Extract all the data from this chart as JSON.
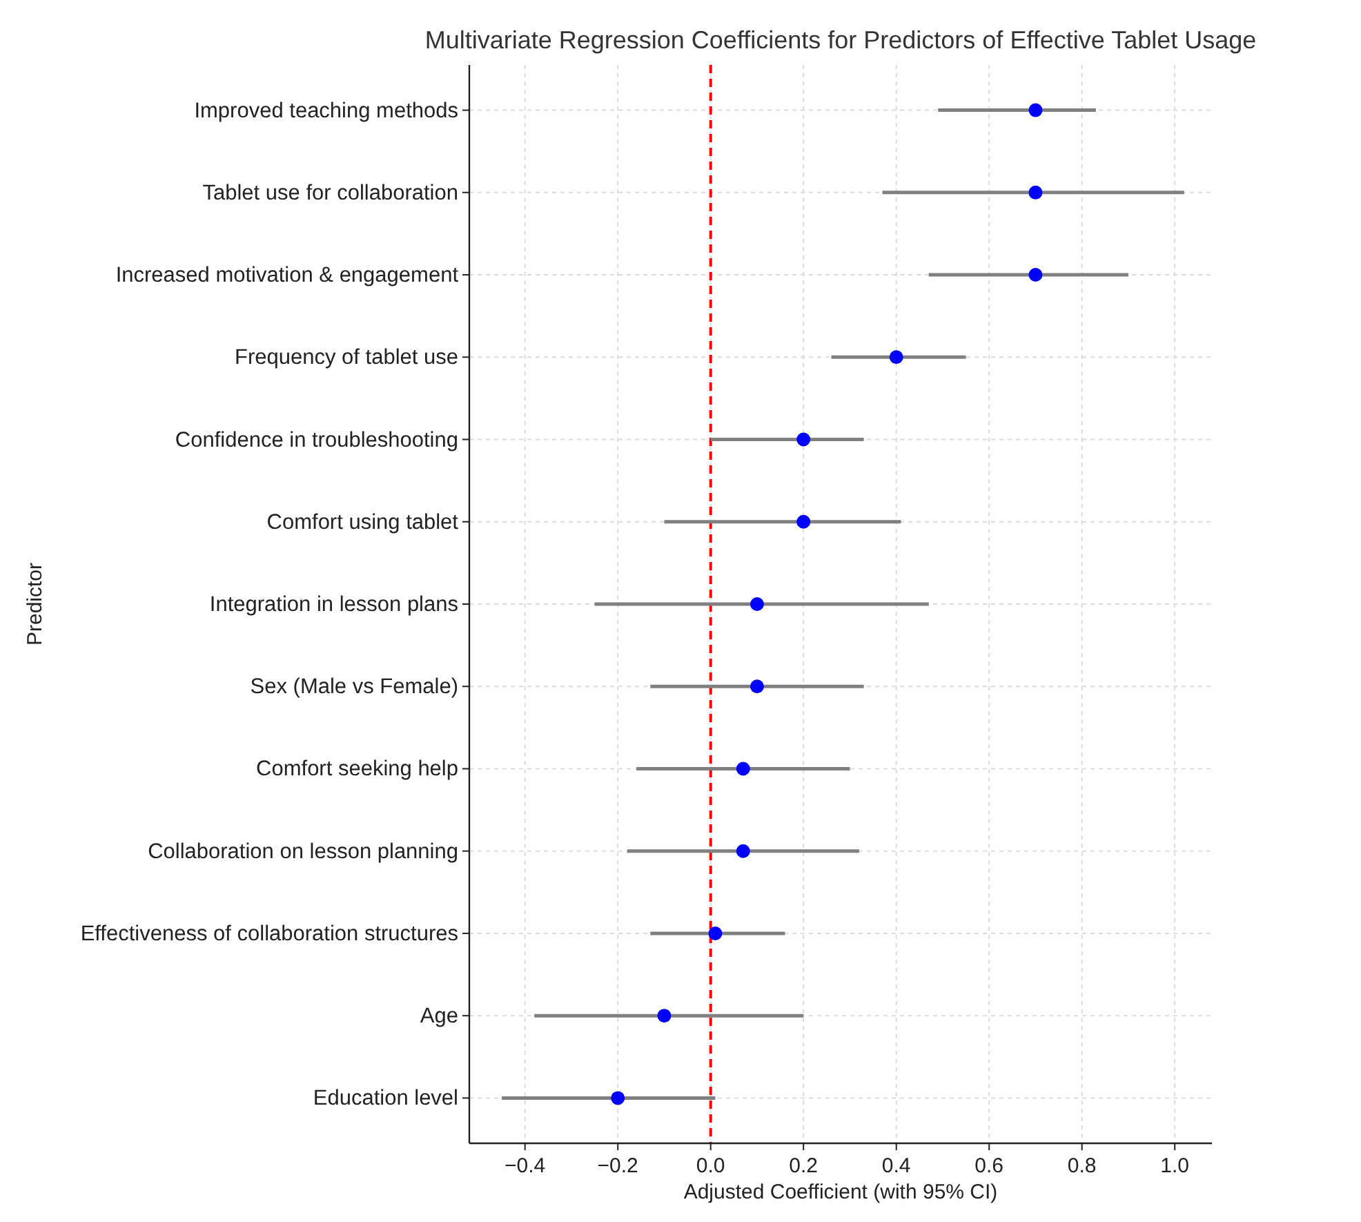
{
  "chart_data": {
    "type": "scatter",
    "orientation": "horizontal",
    "title": "Multivariate Regression Coefficients for Predictors of Effective Tablet Usage",
    "xlabel": "Adjusted Coefficient (with 95% CI)",
    "ylabel": "Predictor",
    "categories": [
      "Improved teaching methods",
      "Tablet use for collaboration",
      "Increased motivation & engagement",
      "Frequency of tablet use",
      "Confidence in troubleshooting",
      "Comfort using tablet",
      "Integration in lesson plans",
      "Sex (Male vs Female)",
      "Comfort seeking help",
      "Collaboration on lesson planning",
      "Effectiveness of collaboration structures",
      "Age",
      "Education level"
    ],
    "values": [
      0.7,
      0.7,
      0.7,
      0.4,
      0.2,
      0.2,
      0.1,
      0.1,
      0.07,
      0.07,
      0.01,
      -0.1,
      -0.2
    ],
    "errors": [
      [
        0.49,
        0.83
      ],
      [
        0.37,
        1.02
      ],
      [
        0.47,
        0.9
      ],
      [
        0.26,
        0.55
      ],
      [
        0.0,
        0.33
      ],
      [
        -0.1,
        0.41
      ],
      [
        -0.25,
        0.47
      ],
      [
        -0.13,
        0.33
      ],
      [
        -0.16,
        0.3
      ],
      [
        -0.18,
        0.32
      ],
      [
        -0.13,
        0.16
      ],
      [
        -0.38,
        0.2
      ],
      [
        -0.45,
        0.01
      ]
    ],
    "color": "#0000ff",
    "marker": "circle",
    "xlim": [
      -0.52,
      1.08
    ],
    "xticks": [
      {
        "value": -0.4,
        "label": "−0.4"
      },
      {
        "value": -0.2,
        "label": "−0.2"
      },
      {
        "value": 0,
        "label": "0.0"
      },
      {
        "value": 0.2,
        "label": "0.2"
      },
      {
        "value": 0.4,
        "label": "0.4"
      },
      {
        "value": 0.6,
        "label": "0.6"
      },
      {
        "value": 0.8,
        "label": "0.8"
      },
      {
        "value": 1,
        "label": "1.0"
      }
    ],
    "grid": true,
    "ref_lines": [
      {
        "axis": "x",
        "value": 0,
        "color": "#ff0000",
        "line_style": "dashed"
      }
    ]
  }
}
